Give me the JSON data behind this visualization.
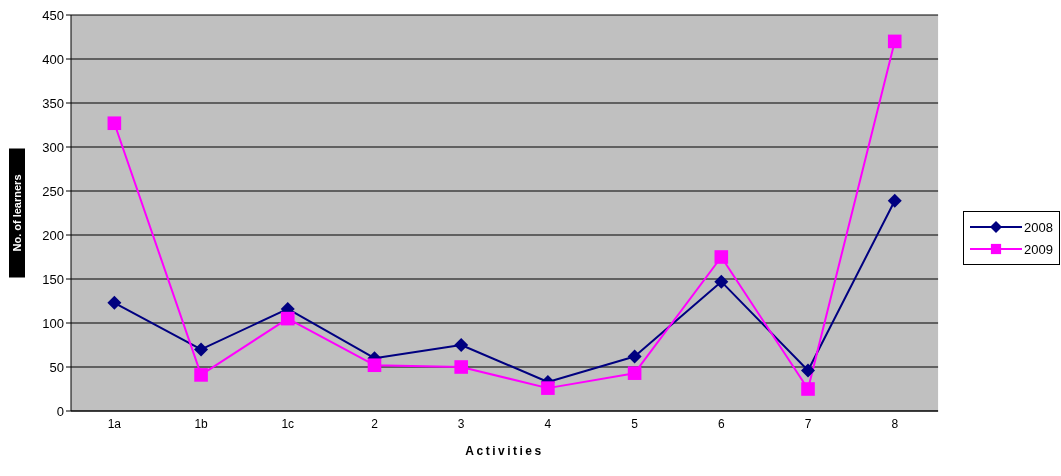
{
  "chart_data": {
    "type": "line",
    "xlabel": "Activities",
    "ylabel": "No. of learners",
    "categories": [
      "1a",
      "1b",
      "1c",
      "2",
      "3",
      "4",
      "5",
      "6",
      "7",
      "8"
    ],
    "series": [
      {
        "name": "2008",
        "color": "#000080",
        "marker": "diamond",
        "values": [
          123,
          70,
          116,
          60,
          75,
          33,
          62,
          147,
          46,
          239
        ]
      },
      {
        "name": "2009",
        "color": "#ff00ff",
        "marker": "square",
        "values": [
          327,
          41,
          105,
          52,
          50,
          26,
          43,
          175,
          25,
          420
        ]
      }
    ],
    "ylim": [
      0,
      450
    ],
    "yticks": [
      0,
      50,
      100,
      150,
      200,
      250,
      300,
      350,
      400,
      450
    ],
    "grid": "y",
    "legend": "right"
  }
}
